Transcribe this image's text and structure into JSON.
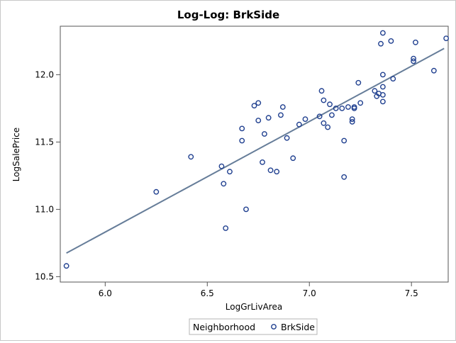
{
  "chart_data": {
    "type": "scatter",
    "title": "Log-Log: BrkSide",
    "xlabel": "LogGrLivArea",
    "ylabel": "LogSalePrice",
    "xlim": [
      5.78,
      7.68
    ],
    "ylim": [
      10.46,
      12.36
    ],
    "xticks": [
      6.0,
      6.5,
      7.0,
      7.5
    ],
    "xtick_labels": [
      "6.0",
      "6.5",
      "7.0",
      "7.5"
    ],
    "yticks": [
      10.5,
      11.0,
      11.5,
      12.0
    ],
    "ytick_labels": [
      "10.5",
      "11.0",
      "11.5",
      "12.0"
    ],
    "grid": false,
    "legend": {
      "position": "bottom-center",
      "title": "Neighborhood",
      "entries": [
        "BrkSide"
      ]
    },
    "colors": {
      "marker": "#1f3f8f",
      "fit_line": "#667d99",
      "axis": "#555555"
    },
    "series": [
      {
        "name": "BrkSide",
        "points": [
          [
            5.81,
            10.58
          ],
          [
            6.25,
            11.13
          ],
          [
            6.42,
            11.39
          ],
          [
            6.57,
            11.32
          ],
          [
            6.58,
            11.19
          ],
          [
            6.59,
            10.86
          ],
          [
            6.61,
            11.28
          ],
          [
            6.67,
            11.6
          ],
          [
            6.67,
            11.51
          ],
          [
            6.69,
            11.0
          ],
          [
            6.73,
            11.77
          ],
          [
            6.75,
            11.79
          ],
          [
            6.75,
            11.66
          ],
          [
            6.77,
            11.35
          ],
          [
            6.78,
            11.56
          ],
          [
            6.8,
            11.68
          ],
          [
            6.81,
            11.29
          ],
          [
            6.84,
            11.28
          ],
          [
            6.86,
            11.7
          ],
          [
            6.87,
            11.76
          ],
          [
            6.89,
            11.53
          ],
          [
            6.92,
            11.38
          ],
          [
            6.95,
            11.63
          ],
          [
            6.98,
            11.67
          ],
          [
            7.05,
            11.69
          ],
          [
            7.06,
            11.88
          ],
          [
            7.07,
            11.81
          ],
          [
            7.07,
            11.64
          ],
          [
            7.09,
            11.61
          ],
          [
            7.1,
            11.78
          ],
          [
            7.11,
            11.7
          ],
          [
            7.13,
            11.75
          ],
          [
            7.16,
            11.75
          ],
          [
            7.17,
            11.51
          ],
          [
            7.17,
            11.24
          ],
          [
            7.19,
            11.76
          ],
          [
            7.21,
            11.67
          ],
          [
            7.21,
            11.65
          ],
          [
            7.22,
            11.76
          ],
          [
            7.22,
            11.75
          ],
          [
            7.24,
            11.94
          ],
          [
            7.25,
            11.79
          ],
          [
            7.32,
            11.88
          ],
          [
            7.33,
            11.84
          ],
          [
            7.34,
            11.86
          ],
          [
            7.35,
            12.23
          ],
          [
            7.36,
            12.31
          ],
          [
            7.36,
            12.0
          ],
          [
            7.36,
            11.91
          ],
          [
            7.36,
            11.85
          ],
          [
            7.36,
            11.8
          ],
          [
            7.4,
            12.25
          ],
          [
            7.41,
            11.97
          ],
          [
            7.51,
            12.12
          ],
          [
            7.51,
            12.1
          ],
          [
            7.52,
            12.24
          ],
          [
            7.61,
            12.03
          ],
          [
            7.67,
            12.27
          ]
        ]
      }
    ],
    "fit_line": {
      "x": [
        5.81,
        7.66
      ],
      "y": [
        10.675,
        12.195
      ]
    }
  }
}
